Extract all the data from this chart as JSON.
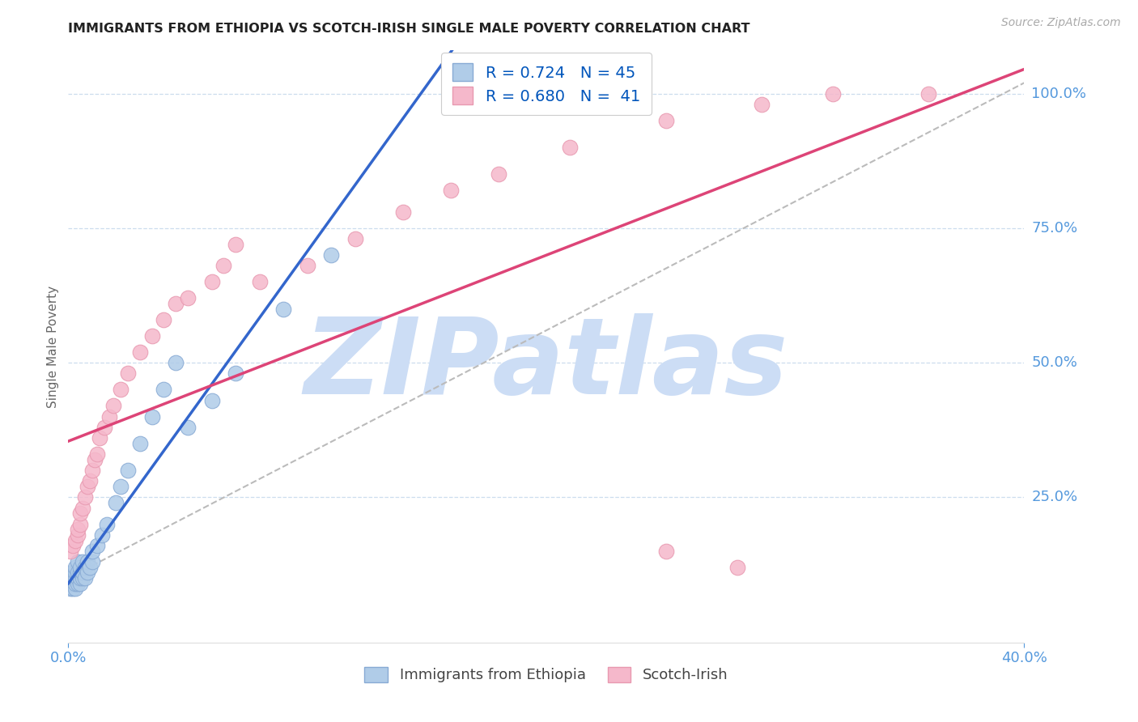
{
  "title": "IMMIGRANTS FROM ETHIOPIA VS SCOTCH-IRISH SINGLE MALE POVERTY CORRELATION CHART",
  "source": "Source: ZipAtlas.com",
  "ylabel": "Single Male Poverty",
  "ytick_labels": [
    "25.0%",
    "50.0%",
    "75.0%",
    "100.0%"
  ],
  "ytick_values": [
    0.25,
    0.5,
    0.75,
    1.0
  ],
  "xmin": 0.0,
  "xmax": 0.4,
  "ymin": -0.02,
  "ymax": 1.08,
  "R_blue": "0.724",
  "N_blue": "45",
  "R_pink": "0.680",
  "N_pink": "41",
  "series1_color": "#b0cce8",
  "series2_color": "#f5b8cb",
  "series1_edge": "#88aad4",
  "series2_edge": "#e899b0",
  "line1_color": "#3366cc",
  "line2_color": "#dd4477",
  "dashed_color": "#bbbbbb",
  "watermark_color": "#ccddf5",
  "grid_color": "#ccddee",
  "ytick_color": "#5599dd",
  "xtick_color": "#5599dd",
  "legend_label1": "Immigrants from Ethiopia",
  "legend_label2": "Scotch-Irish",
  "blue_x": [
    0.001,
    0.001,
    0.001,
    0.002,
    0.002,
    0.002,
    0.002,
    0.003,
    0.003,
    0.003,
    0.003,
    0.003,
    0.004,
    0.004,
    0.004,
    0.004,
    0.005,
    0.005,
    0.005,
    0.005,
    0.006,
    0.006,
    0.006,
    0.007,
    0.007,
    0.008,
    0.008,
    0.009,
    0.01,
    0.01,
    0.012,
    0.014,
    0.016,
    0.02,
    0.022,
    0.025,
    0.03,
    0.035,
    0.04,
    0.045,
    0.05,
    0.06,
    0.07,
    0.09,
    0.11
  ],
  "blue_y": [
    0.08,
    0.09,
    0.1,
    0.08,
    0.09,
    0.1,
    0.11,
    0.08,
    0.09,
    0.1,
    0.11,
    0.12,
    0.09,
    0.1,
    0.11,
    0.13,
    0.09,
    0.1,
    0.11,
    0.12,
    0.1,
    0.11,
    0.13,
    0.1,
    0.12,
    0.11,
    0.13,
    0.12,
    0.13,
    0.15,
    0.16,
    0.18,
    0.2,
    0.24,
    0.27,
    0.3,
    0.35,
    0.4,
    0.45,
    0.5,
    0.38,
    0.43,
    0.48,
    0.6,
    0.7
  ],
  "pink_x": [
    0.001,
    0.002,
    0.003,
    0.004,
    0.004,
    0.005,
    0.005,
    0.006,
    0.007,
    0.008,
    0.009,
    0.01,
    0.011,
    0.012,
    0.013,
    0.015,
    0.017,
    0.019,
    0.022,
    0.025,
    0.03,
    0.035,
    0.04,
    0.045,
    0.05,
    0.06,
    0.065,
    0.07,
    0.08,
    0.1,
    0.12,
    0.14,
    0.16,
    0.18,
    0.21,
    0.25,
    0.29,
    0.32,
    0.36,
    0.25,
    0.28
  ],
  "pink_y": [
    0.15,
    0.16,
    0.17,
    0.18,
    0.19,
    0.2,
    0.22,
    0.23,
    0.25,
    0.27,
    0.28,
    0.3,
    0.32,
    0.33,
    0.36,
    0.38,
    0.4,
    0.42,
    0.45,
    0.48,
    0.52,
    0.55,
    0.58,
    0.61,
    0.62,
    0.65,
    0.68,
    0.72,
    0.65,
    0.68,
    0.73,
    0.78,
    0.82,
    0.85,
    0.9,
    0.95,
    0.98,
    1.0,
    1.0,
    0.15,
    0.12
  ]
}
